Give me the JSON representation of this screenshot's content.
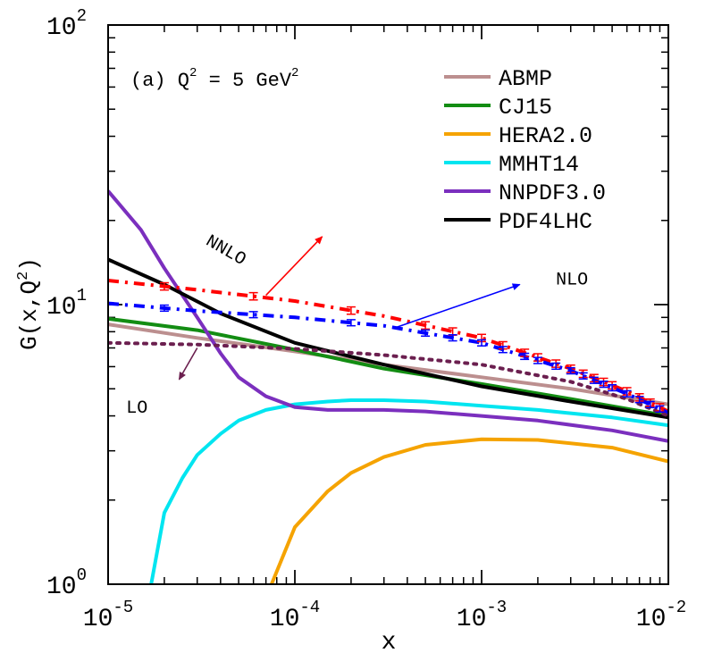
{
  "chart_data": {
    "type": "line",
    "x_scale": "log",
    "y_scale": "log",
    "xlim": [
      1e-05,
      0.01
    ],
    "ylim": [
      1,
      100
    ],
    "xlabel": "x",
    "ylabel_main": "G(x,Q",
    "ylabel_sup": "2",
    "ylabel_tail": ")",
    "panel_label": {
      "prefix": "(a) Q",
      "q_sup": "2",
      "middle": " = 5 GeV",
      "gev_sup": "2"
    },
    "x_ticks": [
      {
        "value": 1e-05,
        "base": "10",
        "exp": "-5"
      },
      {
        "value": 0.0001,
        "base": "10",
        "exp": "-4"
      },
      {
        "value": 0.001,
        "base": "10",
        "exp": "-3"
      },
      {
        "value": 0.01,
        "base": "10",
        "exp": "-2"
      }
    ],
    "y_ticks": [
      {
        "value": 1,
        "base": "10",
        "exp": "0"
      },
      {
        "value": 10,
        "base": "10",
        "exp": "1"
      },
      {
        "value": 100,
        "base": "10",
        "exp": "2"
      }
    ],
    "series": [
      {
        "name": "ABMP",
        "color": "#bc8f8f",
        "style": "solid",
        "x": [
          1e-05,
          3e-05,
          0.0001,
          0.0003,
          0.001,
          0.003,
          0.01
        ],
        "y": [
          8.5,
          7.6,
          6.8,
          6.1,
          5.5,
          5.0,
          4.4
        ]
      },
      {
        "name": "CJ15",
        "color": "#138d13",
        "style": "solid",
        "x": [
          1e-05,
          3e-05,
          0.0001,
          0.0003,
          0.001,
          0.003,
          0.01
        ],
        "y": [
          8.9,
          8.1,
          6.9,
          5.9,
          5.2,
          4.6,
          4.0
        ]
      },
      {
        "name": "HERA2.0",
        "color": "#f5a300",
        "style": "solid",
        "x": [
          7.5e-05,
          0.0001,
          0.00015,
          0.0002,
          0.0003,
          0.0005,
          0.001,
          0.002,
          0.005,
          0.01
        ],
        "y": [
          1.0,
          1.6,
          2.15,
          2.5,
          2.85,
          3.15,
          3.3,
          3.28,
          3.08,
          2.75
        ]
      },
      {
        "name": "MMHT14",
        "color": "#00e5f0",
        "style": "solid",
        "x": [
          1.7e-05,
          2e-05,
          2.5e-05,
          3e-05,
          4e-05,
          5e-05,
          7e-05,
          0.0001,
          0.00015,
          0.0002,
          0.0003,
          0.0005,
          0.001,
          0.002,
          0.005,
          0.01
        ],
        "y": [
          1.0,
          1.8,
          2.4,
          2.9,
          3.45,
          3.85,
          4.2,
          4.4,
          4.5,
          4.55,
          4.55,
          4.5,
          4.35,
          4.2,
          3.95,
          3.7
        ]
      },
      {
        "name": "NNPDF3.0",
        "color": "#7b2fbe",
        "style": "solid",
        "x": [
          1e-05,
          1.5e-05,
          2e-05,
          3e-05,
          4e-05,
          5e-05,
          7e-05,
          0.0001,
          0.00015,
          0.0002,
          0.0003,
          0.0005,
          0.001,
          0.002,
          0.005,
          0.01
        ],
        "y": [
          25.5,
          18.5,
          13.5,
          9.0,
          6.7,
          5.5,
          4.7,
          4.3,
          4.2,
          4.2,
          4.2,
          4.15,
          4.0,
          3.85,
          3.55,
          3.25
        ]
      },
      {
        "name": "PDF4LHC",
        "color": "#000000",
        "style": "solid",
        "x": [
          1e-05,
          2e-05,
          4e-05,
          0.0001,
          0.0003,
          0.001,
          0.003,
          0.01
        ],
        "y": [
          14.5,
          11.8,
          9.3,
          7.3,
          6.1,
          5.1,
          4.5,
          3.95
        ]
      },
      {
        "name": "NNLO",
        "color": "#ff0000",
        "style": "dashdot",
        "x": [
          1e-05,
          3e-05,
          0.0001,
          0.0003,
          0.001,
          0.003,
          0.006,
          0.01
        ],
        "y": [
          12.2,
          11.3,
          10.3,
          9.1,
          7.6,
          5.9,
          4.9,
          4.15
        ]
      },
      {
        "name": "NLO",
        "color": "#0000ff",
        "style": "dashdot",
        "x": [
          1e-05,
          3e-05,
          0.0001,
          0.0003,
          0.001,
          0.003,
          0.006,
          0.01
        ],
        "y": [
          10.1,
          9.5,
          9.0,
          8.4,
          7.3,
          5.8,
          4.8,
          4.1
        ]
      },
      {
        "name": "LO",
        "color": "#6b1f4f",
        "style": "dotted",
        "x": [
          1e-05,
          3e-05,
          0.0001,
          0.0003,
          0.001,
          0.003,
          0.006,
          0.01
        ],
        "y": [
          7.3,
          7.2,
          6.95,
          6.6,
          6.1,
          5.3,
          4.6,
          4.0
        ]
      }
    ],
    "legend_entries": [
      "ABMP",
      "CJ15",
      "HERA2.0",
      "MMHT14",
      "NNPDF3.0",
      "PDF4LHC"
    ],
    "legend_position": "top-right",
    "error_bars": [
      {
        "series": "NNLO",
        "x": [
          2e-05,
          6e-05,
          0.0002,
          0.0005,
          0.0007,
          0.001,
          0.0013,
          0.0017,
          0.002,
          0.0025,
          0.003,
          0.0035,
          0.004,
          0.0045,
          0.005,
          0.006,
          0.007,
          0.008,
          0.009
        ],
        "err": 0.03
      },
      {
        "series": "NLO",
        "x": [
          2e-05,
          6e-05,
          0.0002,
          0.0005,
          0.0007,
          0.001,
          0.0013,
          0.0017,
          0.002,
          0.0025,
          0.003,
          0.0035,
          0.004,
          0.0045,
          0.005,
          0.006,
          0.007,
          0.008,
          0.009
        ],
        "err": 0.025
      }
    ],
    "annotations": [
      {
        "text": "NNLO",
        "color": "#000000",
        "rotation": 30,
        "text_at": [
          3.3e-05,
          16.5
        ],
        "arrow_color": "#ff0000",
        "arrow_from": [
          7e-05,
          10.8
        ],
        "arrow_to": [
          0.00014,
          17.5
        ]
      },
      {
        "text": "NLO",
        "color": "#000000",
        "rotation": 0,
        "text_at": [
          0.0025,
          11.8
        ],
        "arrow_color": "#0000ff",
        "arrow_from": [
          0.00035,
          8.3
        ],
        "arrow_to": [
          0.0016,
          11.8
        ]
      },
      {
        "text": "LO",
        "color": "#000000",
        "rotation": 0,
        "text_at": [
          1.25e-05,
          4.1
        ],
        "arrow_color": "#6b1f4f",
        "arrow_from": [
          3e-05,
          7.0
        ],
        "arrow_to": [
          2.4e-05,
          5.4
        ]
      }
    ]
  }
}
